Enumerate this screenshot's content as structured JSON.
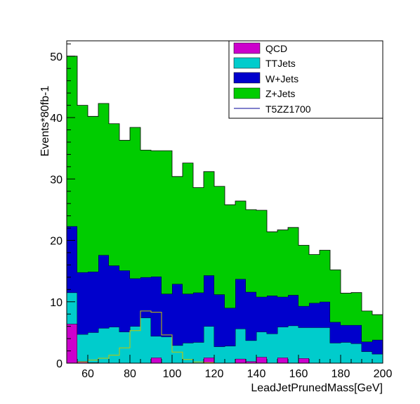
{
  "chart_data": {
    "type": "bar",
    "stacked": true,
    "xlabel": "LeadJetPrunedMass[GeV]",
    "ylabel": "Events*80fb-1",
    "xlim": [
      50,
      200
    ],
    "ylim": [
      0,
      52.5
    ],
    "x_ticks": [
      60,
      80,
      100,
      120,
      140,
      160,
      180,
      200
    ],
    "y_ticks": [
      0,
      10,
      20,
      30,
      40,
      50
    ],
    "bin_edges": [
      50,
      55,
      60,
      65,
      70,
      75,
      80,
      85,
      90,
      95,
      100,
      105,
      110,
      115,
      120,
      125,
      130,
      135,
      140,
      145,
      150,
      155,
      160,
      165,
      170,
      175,
      180,
      185,
      190,
      195,
      200
    ],
    "legend_position": "top-right",
    "series": [
      {
        "name": "QCD",
        "color": "#cc00cc",
        "values": [
          6.4,
          0.3,
          0.1,
          0,
          0,
          0,
          0,
          0,
          0.9,
          0,
          0,
          0,
          0,
          0.9,
          0,
          0,
          0.7,
          0.3,
          1.0,
          0,
          0.9,
          0,
          0.8,
          0,
          0,
          0,
          0,
          0,
          0,
          0
        ]
      },
      {
        "name": "TTJets",
        "color": "#00cccc",
        "values": [
          5.1,
          4.4,
          4.9,
          5.7,
          5.9,
          5.1,
          6.0,
          7.4,
          3.5,
          4.3,
          2.9,
          3.3,
          3.4,
          5.1,
          2.7,
          2.8,
          4.9,
          3.4,
          4.1,
          4.8,
          5.0,
          6.1,
          5.0,
          5.8,
          5.8,
          3.3,
          3.4,
          3.2,
          1.9,
          1.5
        ]
      },
      {
        "name": "W+Jets",
        "color": "#0000cc",
        "values": [
          10.8,
          10.1,
          9.9,
          11.9,
          10.0,
          10.0,
          7.8,
          6.6,
          9.7,
          7.0,
          10.0,
          8.0,
          8.1,
          8.3,
          8.5,
          6.2,
          8.1,
          7.9,
          5.7,
          6.2,
          4.9,
          5.0,
          3.5,
          4.0,
          4.2,
          3.4,
          2.8,
          3.0,
          1.6,
          2.3
        ]
      },
      {
        "name": "Z+Jets",
        "color": "#00cc00",
        "values": [
          27.7,
          27.2,
          25.3,
          24.7,
          23.1,
          21.2,
          24.6,
          20.7,
          20.5,
          23.3,
          17.5,
          21.3,
          17.1,
          16.9,
          17.6,
          16.8,
          12.7,
          13.4,
          14.1,
          10.4,
          10.9,
          11.0,
          9.9,
          7.9,
          8.4,
          8.5,
          5.2,
          5.3,
          5.0,
          4.1
        ]
      }
    ],
    "signal": {
      "name": "T5ZZ1700",
      "color": "#00009a",
      "step_color": "#c8c800",
      "values": [
        0,
        0.2,
        0.5,
        0.8,
        1.3,
        2.5,
        5.3,
        8.5,
        8.3,
        4.6,
        1.8,
        0.6,
        0.2,
        0.1,
        0,
        0,
        0,
        0,
        0,
        0,
        0,
        0,
        0,
        0,
        0,
        0,
        0,
        0,
        0,
        0
      ]
    }
  }
}
